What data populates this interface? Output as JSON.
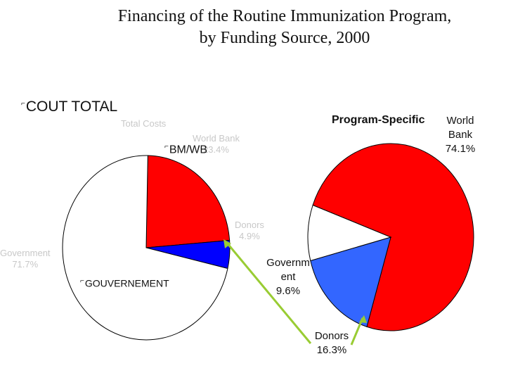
{
  "title_line1": "Financing of the Routine Immunization Program,",
  "title_line2": "by Funding Source, 2000",
  "overlay": {
    "bullet": "⌐",
    "cout_total": "COUT TOTAL",
    "bm_wb": "BM/WB",
    "gouvernement": "GOUVERNEMENT"
  },
  "colors": {
    "world_bank": "#ff0000",
    "donors": "#3366ff",
    "donors_left": "#0000ff",
    "government": "#ffffff",
    "arrow": "#99cc33",
    "outline": "#000000"
  },
  "chart_data": [
    {
      "type": "pie",
      "title": "Total Costs",
      "note": "faint labels partly covered by overlay text",
      "slices": [
        {
          "label": "World Bank",
          "value": 23.4,
          "display": "",
          "color": "#ff0000"
        },
        {
          "label": "Donors",
          "value": 4.9,
          "display": "4.9%",
          "color": "#0000ff"
        },
        {
          "label": "Government",
          "value": 71.7,
          "display": "",
          "color": "#ffffff"
        }
      ],
      "start_angle_deg": 0
    },
    {
      "type": "pie",
      "title": "Program-Specific",
      "slices": [
        {
          "label": "World Bank",
          "value": 74.1,
          "display": "74.1%",
          "color": "#ff0000"
        },
        {
          "label": "Donors",
          "value": 16.3,
          "display": "16.3%",
          "color": "#3366ff"
        },
        {
          "label": "Government",
          "value": 9.6,
          "display": "9.6%",
          "color": "#ffffff"
        }
      ],
      "start_angle_deg": 158
    }
  ],
  "right_labels": {
    "world_bank_line1": "World",
    "world_bank_line2": "Bank",
    "world_bank_pct": "74.1%",
    "gov_line1": "Governm",
    "gov_line2": "ent",
    "gov_pct": "9.6%",
    "donors_line1": "Donors",
    "donors_pct": "16.3%"
  },
  "left_faint_labels": {
    "total_costs": "Total Costs",
    "world_bank_line1": "World Bank",
    "world_bank_pct": "23.4%",
    "donors_line1": "Donors",
    "donors_pct": "4.9%",
    "government_line1": "Government",
    "government_pct": "71.7%"
  }
}
